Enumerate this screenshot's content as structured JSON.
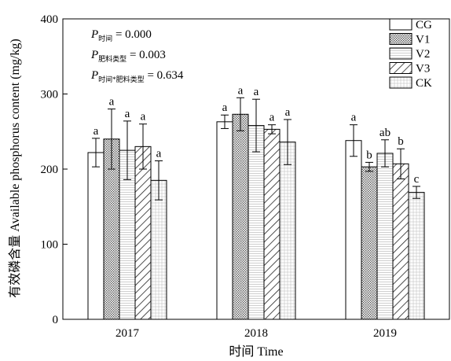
{
  "chart_data": {
    "type": "bar",
    "categories": [
      "2017",
      "2018",
      "2019"
    ],
    "xlabel": "时间 Time",
    "ylabel": "有效磷含量 Available phosphorus content (mg/kg)",
    "ylim": [
      0,
      400
    ],
    "yticks": [
      0,
      100,
      200,
      300,
      400
    ],
    "grid": false,
    "legend": "top-right",
    "series": [
      {
        "name": "CG",
        "pattern": "white",
        "values": [
          222,
          263,
          238
        ],
        "errors": [
          19,
          9,
          21
        ],
        "labels": [
          "a",
          "a",
          "a"
        ]
      },
      {
        "name": "V1",
        "pattern": "dense-dots",
        "values": [
          240,
          273,
          203
        ],
        "errors": [
          40,
          22,
          6
        ],
        "labels": [
          "a",
          "a",
          "b"
        ]
      },
      {
        "name": "V2",
        "pattern": "horizontal-lines",
        "values": [
          225,
          258,
          221
        ],
        "errors": [
          39,
          35,
          18
        ],
        "labels": [
          "a",
          "a",
          "ab"
        ]
      },
      {
        "name": "V3",
        "pattern": "diagonal-hatch",
        "values": [
          230,
          253,
          207
        ],
        "errors": [
          30,
          6,
          20
        ],
        "labels": [
          "a",
          "a",
          "b"
        ]
      },
      {
        "name": "CK",
        "pattern": "grid",
        "values": [
          185,
          236,
          169
        ],
        "errors": [
          26,
          30,
          8
        ],
        "labels": [
          "a",
          "a",
          "c"
        ]
      }
    ],
    "annotations": [
      {
        "main": "P",
        "sub": "时间",
        "text": " = 0.000"
      },
      {
        "main": "P",
        "sub": "肥料类型",
        "text": " = 0.003"
      },
      {
        "main": "P",
        "sub": "时间*肥料类型",
        "text": " = 0.634"
      }
    ]
  }
}
